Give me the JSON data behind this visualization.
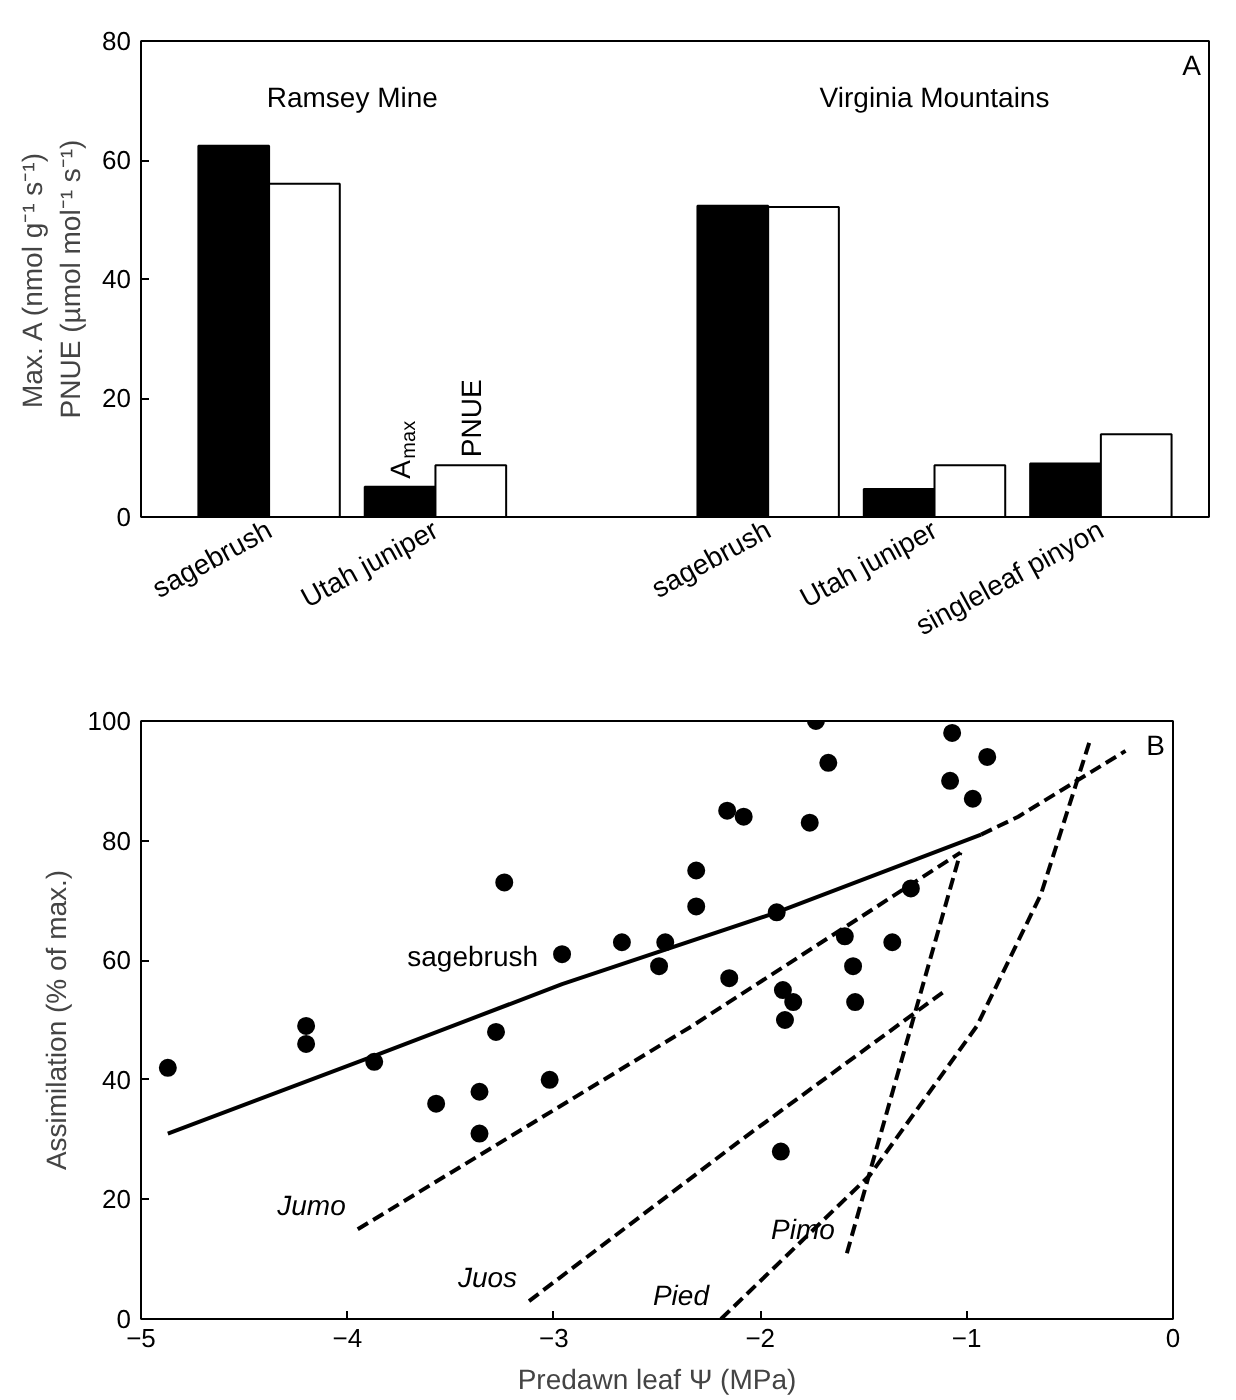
{
  "chart_data": [
    {
      "type": "bar",
      "ylabel": "Max. A (nmol g⁻¹ s⁻¹)\nPNUE (µmol mol⁻¹ s⁻¹)",
      "categories": [
        "sagebrush",
        "Utah juniper",
        null,
        "sagebrush",
        "Utah juniper",
        "singleleaf pinyon"
      ],
      "series": [
        {
          "name": "A$_{max}$",
          "color": "#000000",
          "values": [
            62.4,
            5.1,
            null,
            52.3,
            4.7,
            9.0
          ]
        },
        {
          "name": "PNUE",
          "color": "#ffffff",
          "values": [
            56.0,
            8.7,
            null,
            52.1,
            8.7,
            13.9
          ]
        }
      ],
      "ylim": [
        0,
        80
      ],
      "yticks": [
        0,
        20,
        40,
        60,
        80
      ],
      "grid": false,
      "annotations": [
        "Ramsey Mine",
        "Virginia Mountains",
        "A"
      ]
    },
    {
      "type": "scatter",
      "xlabel": "Predawn leaf Ψ (MPa)",
      "ylabel": "Assimilation (% of max.)",
      "series": [
        {
          "type": "scatter",
          "color": "#000000",
          "marker": "circle",
          "x": [
            -4.87,
            -4.2,
            -4.2,
            -3.87,
            -3.57,
            -3.36,
            -3.36,
            -3.28,
            -3.24,
            -3.02,
            -2.96,
            -2.67,
            -2.49,
            -2.46,
            -2.31,
            -2.31,
            -2.16,
            -2.08,
            -2.15,
            -1.92,
            -1.89,
            -1.84,
            -1.88,
            -1.9,
            -1.76,
            -1.73,
            -1.67,
            -1.59,
            -1.55,
            -1.54,
            -1.36,
            -1.27,
            -1.07,
            -1.08,
            -0.97,
            -0.9
          ],
          "values": [
            42,
            49,
            46,
            43,
            36,
            38,
            31,
            48,
            73,
            40,
            61,
            63,
            59,
            63,
            69,
            75,
            85,
            84,
            57,
            68,
            55,
            53,
            50,
            28,
            83,
            100,
            93,
            64,
            59,
            53,
            63,
            72,
            98,
            90,
            87,
            94
          ]
        },
        {
          "type": "line",
          "name": "sagebrush",
          "color": "#000000",
          "line_style": "solid",
          "x": [
            -4.87,
            -3.87,
            -2.96,
            -1.92,
            -0.93
          ],
          "values": [
            31,
            44,
            56,
            68,
            81
          ]
        },
        {
          "type": "line",
          "color": "#000000",
          "line_style": "dashed",
          "x": [
            -0.93,
            -0.75,
            -0.23
          ],
          "values": [
            81,
            84,
            95
          ]
        },
        {
          "type": "line",
          "name": "Jumo",
          "color": "#000000",
          "line_style": "dashed",
          "x": [
            -3.95,
            -2.33,
            -1.03
          ],
          "values": [
            15,
            49,
            78
          ]
        },
        {
          "type": "line",
          "name": "Juos",
          "color": "#000000",
          "line_style": "dashed",
          "x": [
            -3.12,
            -2.09,
            -1.1
          ],
          "values": [
            3,
            30,
            55
          ]
        },
        {
          "type": "line",
          "name": "Pied",
          "color": "#000000",
          "line_style": "dashed",
          "x": [
            -2.19,
            -1.47,
            -0.95,
            -0.64,
            -0.4
          ],
          "values": [
            0,
            24,
            49,
            71,
            97
          ]
        },
        {
          "type": "line",
          "name": "Pimo",
          "color": "#000000",
          "line_style": "dashed",
          "x": [
            -1.58,
            -1.03
          ],
          "values": [
            11,
            78
          ]
        }
      ],
      "xlim": [
        -5,
        0
      ],
      "xticks": [
        -5,
        -4,
        -3,
        -2,
        -1,
        0
      ],
      "ylim": [
        0,
        100
      ],
      "yticks": [
        0,
        20,
        40,
        60,
        80,
        100
      ],
      "grid": false,
      "annotations": [
        "B"
      ]
    }
  ]
}
